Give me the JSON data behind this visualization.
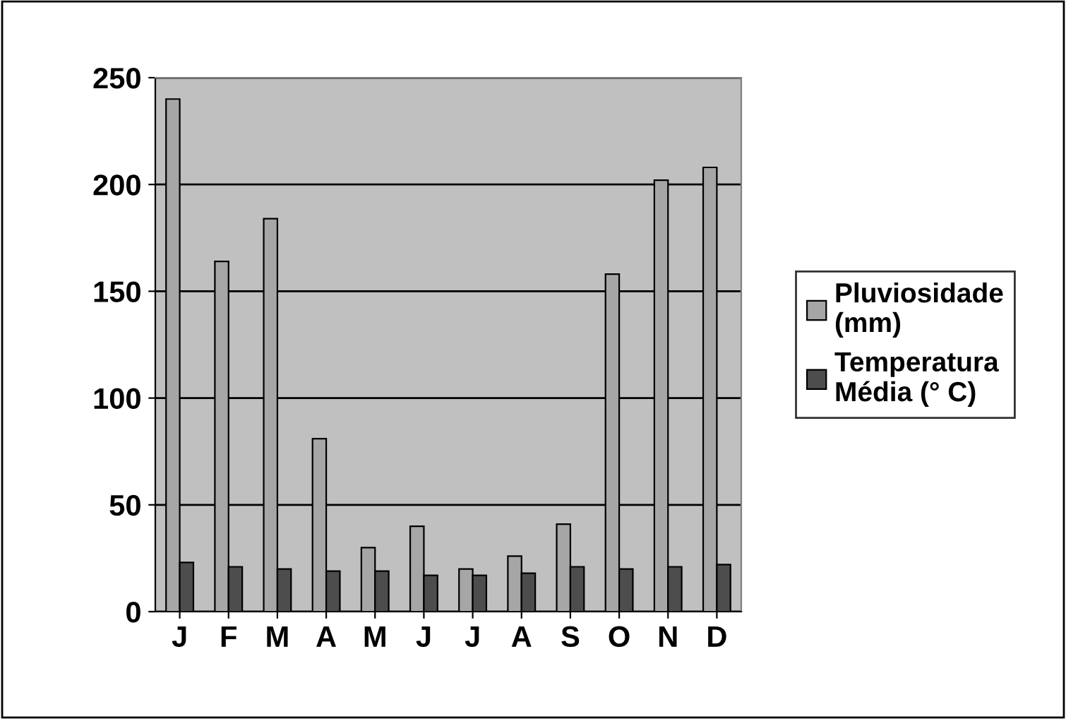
{
  "chart_data": {
    "type": "bar",
    "categories": [
      "J",
      "F",
      "M",
      "A",
      "M",
      "J",
      "J",
      "A",
      "S",
      "O",
      "N",
      "D"
    ],
    "series": [
      {
        "name": "Pluviosidade (mm)",
        "color": "#a6a6a6",
        "values": [
          240,
          164,
          184,
          81,
          30,
          40,
          20,
          26,
          41,
          158,
          202,
          208
        ]
      },
      {
        "name": "Temperatura Média (° C)",
        "color": "#4d4d4d",
        "values": [
          23,
          21,
          20,
          19,
          19,
          17,
          17,
          18,
          21,
          20,
          21,
          22
        ]
      }
    ],
    "ylim": [
      0,
      250
    ],
    "yticks": [
      0,
      50,
      100,
      150,
      200,
      250
    ],
    "grid": "y",
    "legend": "right"
  }
}
